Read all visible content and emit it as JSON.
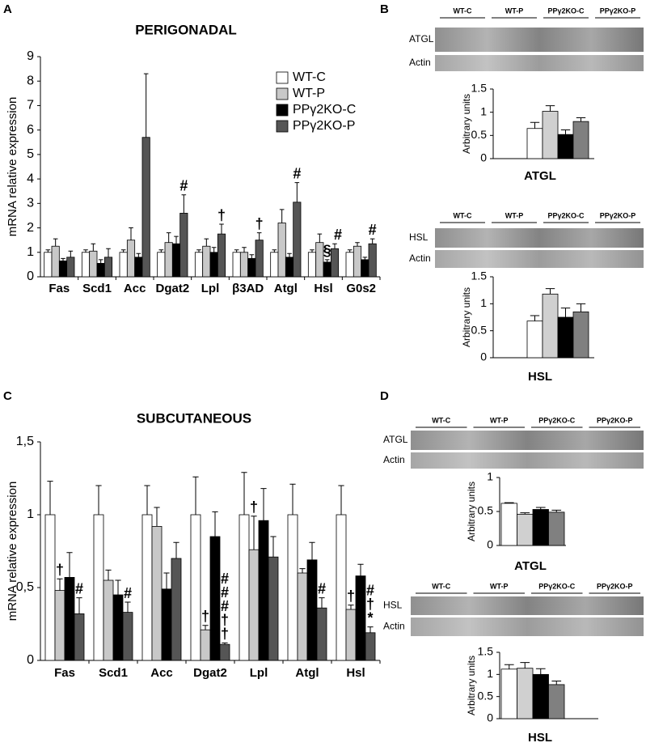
{
  "panel_labels": [
    "A",
    "B",
    "C",
    "D"
  ],
  "blots": [
    {
      "lanes": [
        "WT-C",
        "WT-P",
        "PPγ2KO-C",
        "PPγ2KO-P"
      ],
      "rows": [
        "ATGL",
        "Actin"
      ]
    },
    {
      "lanes": [
        "WT-C",
        "WT-P",
        "PPγ2KO-C",
        "PPγ2KO-P"
      ],
      "rows": [
        "HSL",
        "Actin"
      ]
    },
    {
      "lanes": [
        "WT-C",
        "WT-P",
        "PPγ2KO-C",
        "PPγ2KO-P"
      ],
      "rows": [
        "ATGL",
        "Actin"
      ]
    },
    {
      "lanes": [
        "WT-C",
        "WT-P",
        "PPγ2KO-C",
        "PPγ2KO-P"
      ],
      "rows": [
        "HSL",
        "Actin"
      ]
    }
  ],
  "chart_data": [
    {
      "type": "bar",
      "title": "PERIGONADAL",
      "ylabel": "mRNA relative expression",
      "categories": [
        "Fas",
        "Scd1",
        "Acc",
        "Dgat2",
        "Lpl",
        "β3AD",
        "Atgl",
        "Hsl",
        "G0s2"
      ],
      "series": [
        {
          "name": "WT-C",
          "color": "#ffffff",
          "values": [
            1,
            1,
            1,
            1,
            1,
            1,
            1,
            1,
            1
          ],
          "errors": [
            0.1,
            0.1,
            0.1,
            0.1,
            0.1,
            0.1,
            0.1,
            0.1,
            0.1
          ]
        },
        {
          "name": "WT-P",
          "color": "#c8c8c8",
          "values": [
            1.25,
            1.05,
            1.5,
            1.4,
            1.25,
            1.0,
            2.2,
            1.4,
            1.25
          ],
          "errors": [
            0.3,
            0.3,
            0.5,
            0.4,
            0.3,
            0.2,
            0.55,
            0.35,
            0.15
          ]
        },
        {
          "name": "PPγ2KO-C",
          "color": "#000000",
          "values": [
            0.65,
            0.55,
            0.8,
            1.35,
            1.0,
            0.75,
            0.8,
            0.6,
            0.7
          ],
          "errors": [
            0.1,
            0.15,
            0.15,
            0.3,
            0.2,
            0.15,
            0.15,
            0.1,
            0.1
          ],
          "annotations": [
            null,
            null,
            null,
            null,
            null,
            null,
            null,
            "§",
            null
          ]
        },
        {
          "name": "PPγ2KO-P",
          "color": "#555555",
          "values": [
            0.8,
            0.8,
            5.7,
            2.6,
            1.75,
            1.5,
            3.05,
            1.15,
            1.35
          ],
          "errors": [
            0.25,
            0.35,
            2.6,
            0.75,
            0.4,
            0.3,
            0.8,
            0.2,
            0.2
          ],
          "annotations": [
            null,
            null,
            null,
            "#",
            "†",
            "†",
            "#",
            "#",
            "#"
          ]
        }
      ],
      "ylim": [
        0,
        9
      ],
      "yticks": [
        0,
        1,
        2,
        3,
        4,
        5,
        6,
        7,
        8,
        9
      ]
    },
    {
      "type": "bar",
      "title": "ATGL",
      "ylabel": "Arbitrary units",
      "series": [
        {
          "color": "#ffffff",
          "values": [
            0.65
          ],
          "errors": [
            0.13
          ]
        },
        {
          "color": "#d0d0d0",
          "values": [
            1.02
          ],
          "errors": [
            0.12
          ]
        },
        {
          "color": "#000000",
          "values": [
            0.52
          ],
          "errors": [
            0.1
          ]
        },
        {
          "color": "#808080",
          "values": [
            0.8
          ],
          "errors": [
            0.08
          ]
        }
      ],
      "ylim": [
        0,
        1.5
      ],
      "yticks": [
        0,
        0.5,
        1,
        1.5
      ]
    },
    {
      "type": "bar",
      "title": "HSL",
      "ylabel": "Arbitrary units",
      "series": [
        {
          "color": "#ffffff",
          "values": [
            0.68
          ],
          "errors": [
            0.1
          ]
        },
        {
          "color": "#d0d0d0",
          "values": [
            1.18
          ],
          "errors": [
            0.1
          ]
        },
        {
          "color": "#000000",
          "values": [
            0.75
          ],
          "errors": [
            0.17
          ]
        },
        {
          "color": "#808080",
          "values": [
            0.85
          ],
          "errors": [
            0.15
          ]
        }
      ],
      "ylim": [
        0,
        1.5
      ],
      "yticks": [
        0,
        0.5,
        1,
        1.5
      ]
    },
    {
      "type": "bar",
      "title": "SUBCUTANEOUS",
      "ylabel": "mRNA relative expression",
      "categories": [
        "Fas",
        "Scd1",
        "Acc",
        "Dgat2",
        "Lpl",
        "Atgl",
        "Hsl"
      ],
      "series": [
        {
          "color": "#ffffff",
          "values": [
            1,
            1,
            1,
            1,
            1,
            1,
            1
          ],
          "errors": [
            0.23,
            0.2,
            0.2,
            0.26,
            0.29,
            0.21,
            0.2
          ]
        },
        {
          "color": "#c8c8c8",
          "values": [
            0.48,
            0.55,
            0.92,
            0.21,
            0.76,
            0.6,
            0.35
          ],
          "errors": [
            0.08,
            0.07,
            0.13,
            0.03,
            0.23,
            0.03,
            0.03
          ],
          "annotations": [
            "†",
            null,
            null,
            "†",
            "†",
            null,
            "†"
          ]
        },
        {
          "color": "#000000",
          "values": [
            0.57,
            0.45,
            0.49,
            0.85,
            0.96,
            0.69,
            0.58
          ],
          "errors": [
            0.17,
            0.1,
            0.11,
            0.17,
            0.22,
            0.12,
            0.08
          ]
        },
        {
          "color": "#555555",
          "values": [
            0.32,
            0.33,
            0.7,
            0.11,
            0.71,
            0.36,
            0.19
          ],
          "errors": [
            0.11,
            0.07,
            0.11,
            0.01,
            0.14,
            0.07,
            0.04
          ],
          "annotations": [
            "#",
            "#",
            null,
            "###††",
            null,
            "#",
            "#†*"
          ]
        }
      ],
      "ylim": [
        0,
        1.5
      ],
      "yticks": [
        0,
        {
          "value": 0.5,
          "label": "0,5"
        },
        1,
        {
          "value": 1.5,
          "label": "1,5"
        }
      ]
    },
    {
      "type": "bar",
      "title": "ATGL",
      "ylabel": "Arbitrary units",
      "series": [
        {
          "color": "#ffffff",
          "values": [
            0.62
          ],
          "errors": [
            0.01
          ]
        },
        {
          "color": "#d0d0d0",
          "values": [
            0.46
          ],
          "errors": [
            0.02
          ]
        },
        {
          "color": "#000000",
          "values": [
            0.53
          ],
          "errors": [
            0.03
          ]
        },
        {
          "color": "#808080",
          "values": [
            0.49
          ],
          "errors": [
            0.03
          ]
        }
      ],
      "ylim": [
        0,
        1
      ],
      "yticks": [
        0,
        0.5,
        1
      ]
    },
    {
      "type": "bar",
      "title": "HSL",
      "ylabel": "Arbitrary units",
      "series": [
        {
          "color": "#ffffff",
          "values": [
            1.12
          ],
          "errors": [
            0.1
          ]
        },
        {
          "color": "#d0d0d0",
          "values": [
            1.14
          ],
          "errors": [
            0.13
          ]
        },
        {
          "color": "#000000",
          "values": [
            1.0
          ],
          "errors": [
            0.13
          ]
        },
        {
          "color": "#808080",
          "values": [
            0.77
          ],
          "errors": [
            0.08
          ]
        }
      ],
      "ylim": [
        0,
        1.5
      ],
      "yticks": [
        0,
        0.5,
        1,
        1.5
      ]
    }
  ]
}
